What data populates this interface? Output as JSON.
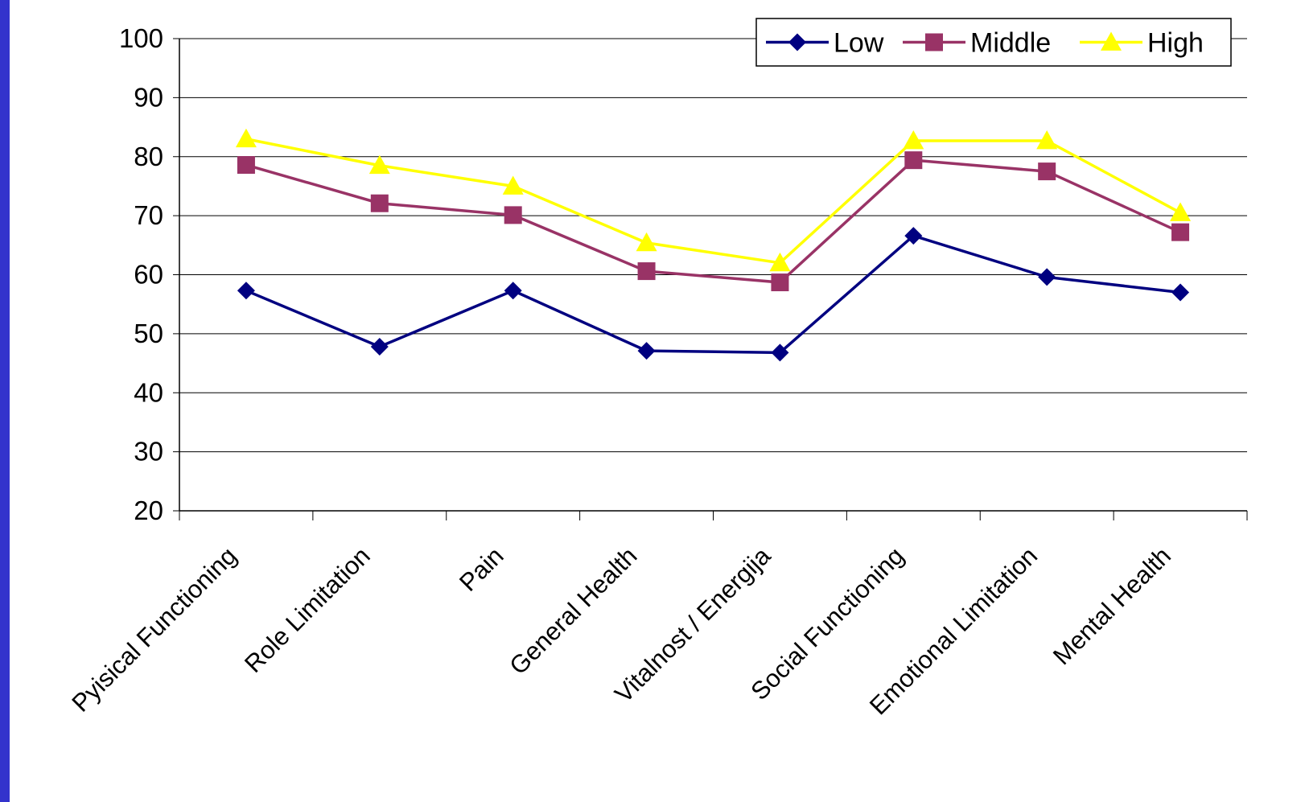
{
  "chart_data": {
    "type": "line",
    "categories": [
      "Pyisical Functioning",
      "Role Limitation",
      "Pain",
      "General Health",
      "Vitalnost / Energija",
      "Social Functioning",
      "Emotional Limitation",
      "Mental Health"
    ],
    "ylim": [
      20,
      100
    ],
    "yticks": [
      100,
      90,
      80,
      70,
      60,
      50,
      40,
      30,
      20
    ],
    "grid": true,
    "legend": "top-right",
    "series": [
      {
        "name": "Low",
        "color": "#000080",
        "marker": "diamond",
        "values": [
          57.3,
          47.8,
          57.3,
          47.1,
          46.8,
          66.6,
          59.6,
          57.0
        ]
      },
      {
        "name": "Middle",
        "color": "#993366",
        "marker": "square",
        "values": [
          78.6,
          72.1,
          70.1,
          60.6,
          58.7,
          79.4,
          77.5,
          67.2
        ]
      },
      {
        "name": "High",
        "color": "#ffff00",
        "marker": "triangle",
        "values": [
          83.0,
          78.5,
          75.0,
          65.4,
          62.0,
          82.7,
          82.7,
          70.5
        ]
      }
    ]
  }
}
